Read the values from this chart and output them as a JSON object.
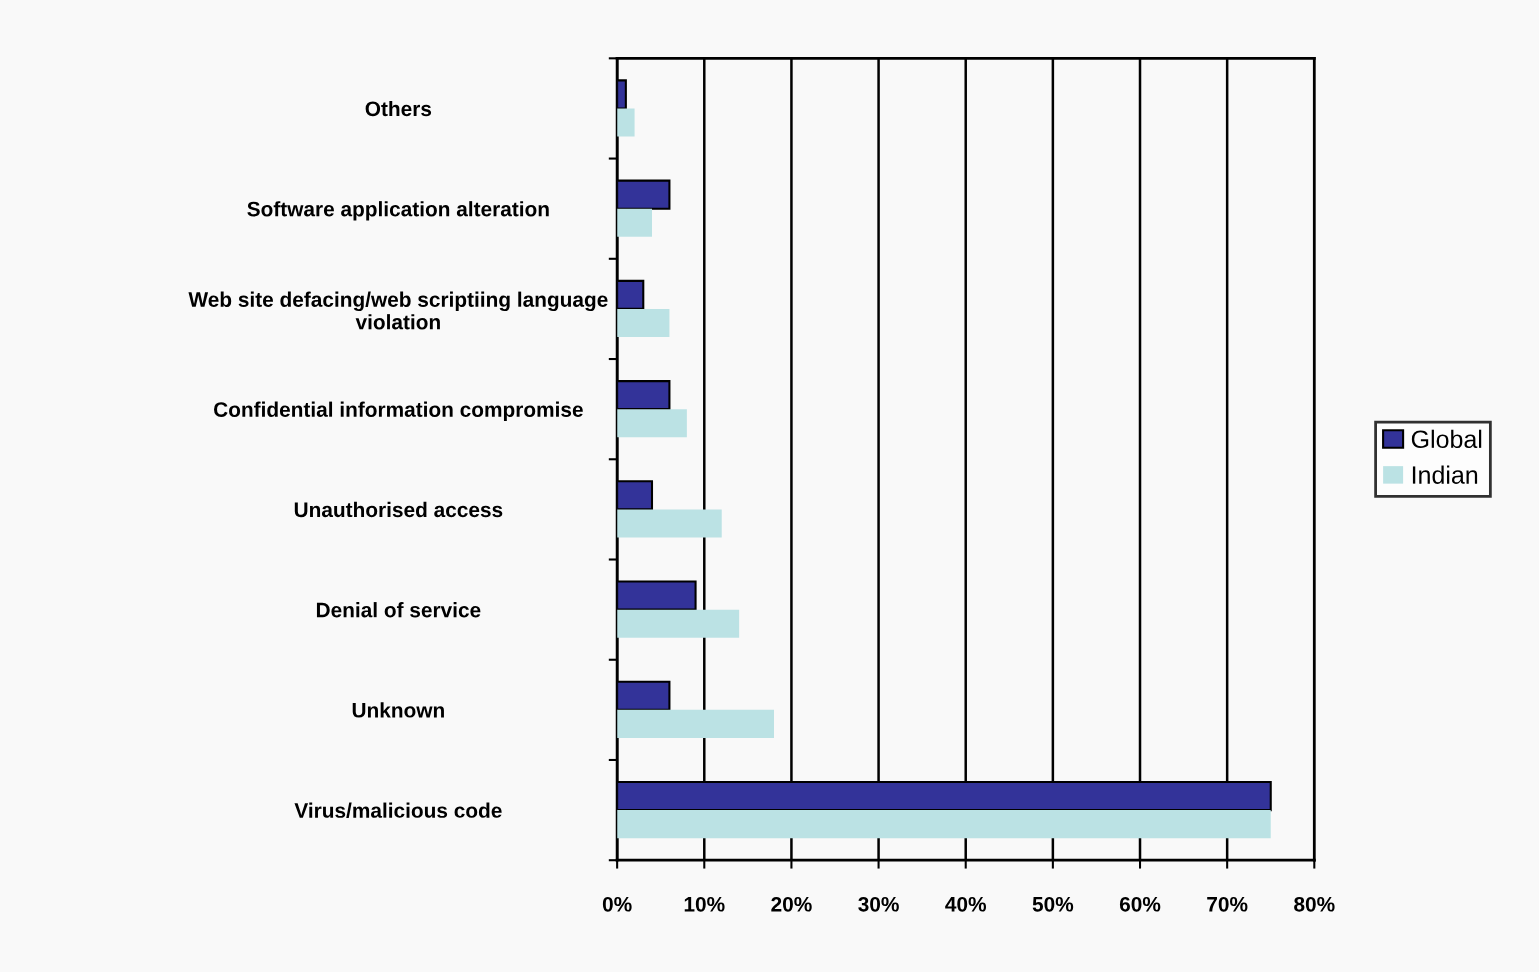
{
  "chart_data": {
    "type": "bar",
    "orientation": "horizontal",
    "categories": [
      "Others",
      "Software application alteration",
      "Web site defacing/web scriptiing language\nviolation",
      "Confidential information compromise",
      "Unauthorised access",
      "Denial of service",
      "Unknown",
      "Virus/malicious code"
    ],
    "series": [
      {
        "name": "Global",
        "color": "#333399",
        "values": [
          1,
          6,
          3,
          6,
          4,
          9,
          6,
          75
        ]
      },
      {
        "name": "Indian",
        "color": "#bbe2e4",
        "values": [
          2,
          4,
          6,
          8,
          12,
          14,
          18,
          75
        ]
      }
    ],
    "xlim": [
      0,
      80
    ],
    "xticks": [
      {
        "value": 0,
        "label": "0%"
      },
      {
        "value": 10,
        "label": "10%"
      },
      {
        "value": 20,
        "label": "20%"
      },
      {
        "value": 30,
        "label": "30%"
      },
      {
        "value": 40,
        "label": "40%"
      },
      {
        "value": 50,
        "label": "50%"
      },
      {
        "value": 60,
        "label": "60%"
      },
      {
        "value": 70,
        "label": "70%"
      },
      {
        "value": 80,
        "label": "80%"
      }
    ],
    "grid": "x",
    "legend": "right"
  }
}
